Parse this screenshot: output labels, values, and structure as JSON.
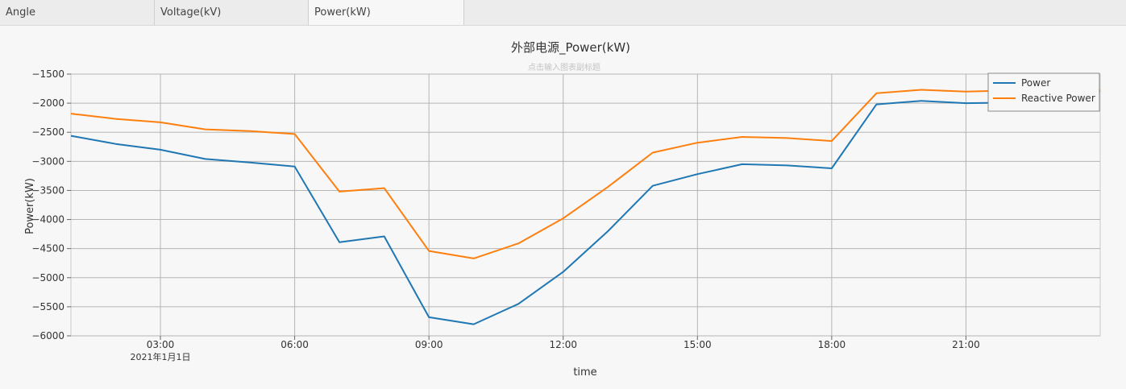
{
  "tabs": [
    {
      "label": "Angle",
      "active": false
    },
    {
      "label": "Voltage(kV)",
      "active": false
    },
    {
      "label": "Power(kW)",
      "active": true
    }
  ],
  "chart_data": {
    "type": "line",
    "title": "外部电源_Power(kW)",
    "subtitle": "点击输入图表副标题",
    "xlabel": "time",
    "ylabel": "Power(kW)",
    "x_ticks": [
      "03:00",
      "06:00",
      "09:00",
      "12:00",
      "15:00",
      "18:00",
      "21:00"
    ],
    "x_date_label": "2021年1月1日",
    "y_ticks": [
      "−1500",
      "−2000",
      "−2500",
      "−3000",
      "−3500",
      "−4000",
      "−4500",
      "−5000",
      "−5500",
      "−6000"
    ],
    "ylim": [
      -6000,
      -1500
    ],
    "x_hours": [
      1,
      2,
      3,
      4,
      5,
      6,
      7,
      8,
      9,
      10,
      11,
      12,
      13,
      14,
      15,
      16,
      17,
      18,
      19,
      20,
      21,
      22,
      23,
      24
    ],
    "xlim_hours": [
      1,
      24
    ],
    "grid": true,
    "legend_position": "top-right",
    "series": [
      {
        "name": "Power",
        "color": "#1f77b4",
        "values": [
          -2560,
          -2700,
          -2800,
          -2960,
          -3020,
          -3090,
          -4390,
          -4290,
          -5680,
          -5800,
          -5450,
          -4900,
          -4200,
          -3420,
          -3220,
          -3050,
          -3070,
          -3120,
          -2020,
          -1960,
          -2000,
          -1990,
          -1900,
          -1790
        ]
      },
      {
        "name": "Reactive Power",
        "color": "#ff7f0e",
        "values": [
          -2180,
          -2270,
          -2330,
          -2450,
          -2480,
          -2530,
          -3520,
          -3460,
          -4540,
          -4670,
          -4410,
          -3980,
          -3440,
          -2850,
          -2680,
          -2580,
          -2600,
          -2650,
          -1830,
          -1770,
          -1800,
          -1780,
          -1680,
          -1780
        ]
      }
    ]
  }
}
